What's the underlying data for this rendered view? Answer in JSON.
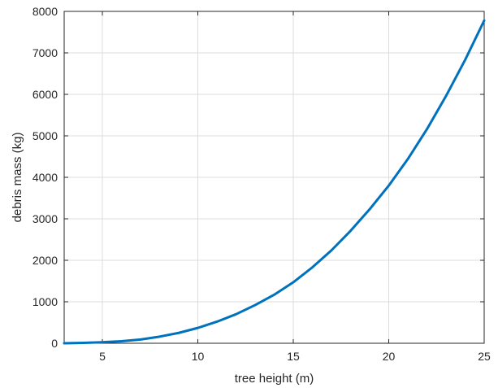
{
  "chart_data": {
    "type": "line",
    "title": "",
    "xlabel": "tree height (m)",
    "ylabel": "debris mass (kg)",
    "xlim": [
      3,
      25
    ],
    "ylim": [
      0,
      8000
    ],
    "xticks": [
      5,
      10,
      15,
      20,
      25
    ],
    "yticks": [
      0,
      1000,
      2000,
      3000,
      4000,
      5000,
      6000,
      7000,
      8000
    ],
    "grid": true,
    "legend": "none",
    "series": [
      {
        "color": "#0072BD",
        "x": [
          3,
          4,
          5,
          6,
          7,
          8,
          9,
          10,
          11,
          12,
          13,
          14,
          15,
          16,
          17,
          18,
          19,
          20,
          21,
          22,
          23,
          24,
          25
        ],
        "y": [
          0,
          10,
          25,
          50,
          90,
          160,
          250,
          370,
          520,
          700,
          920,
          1170,
          1470,
          1830,
          2240,
          2710,
          3230,
          3800,
          4440,
          5160,
          5960,
          6830,
          7780
        ]
      }
    ]
  }
}
